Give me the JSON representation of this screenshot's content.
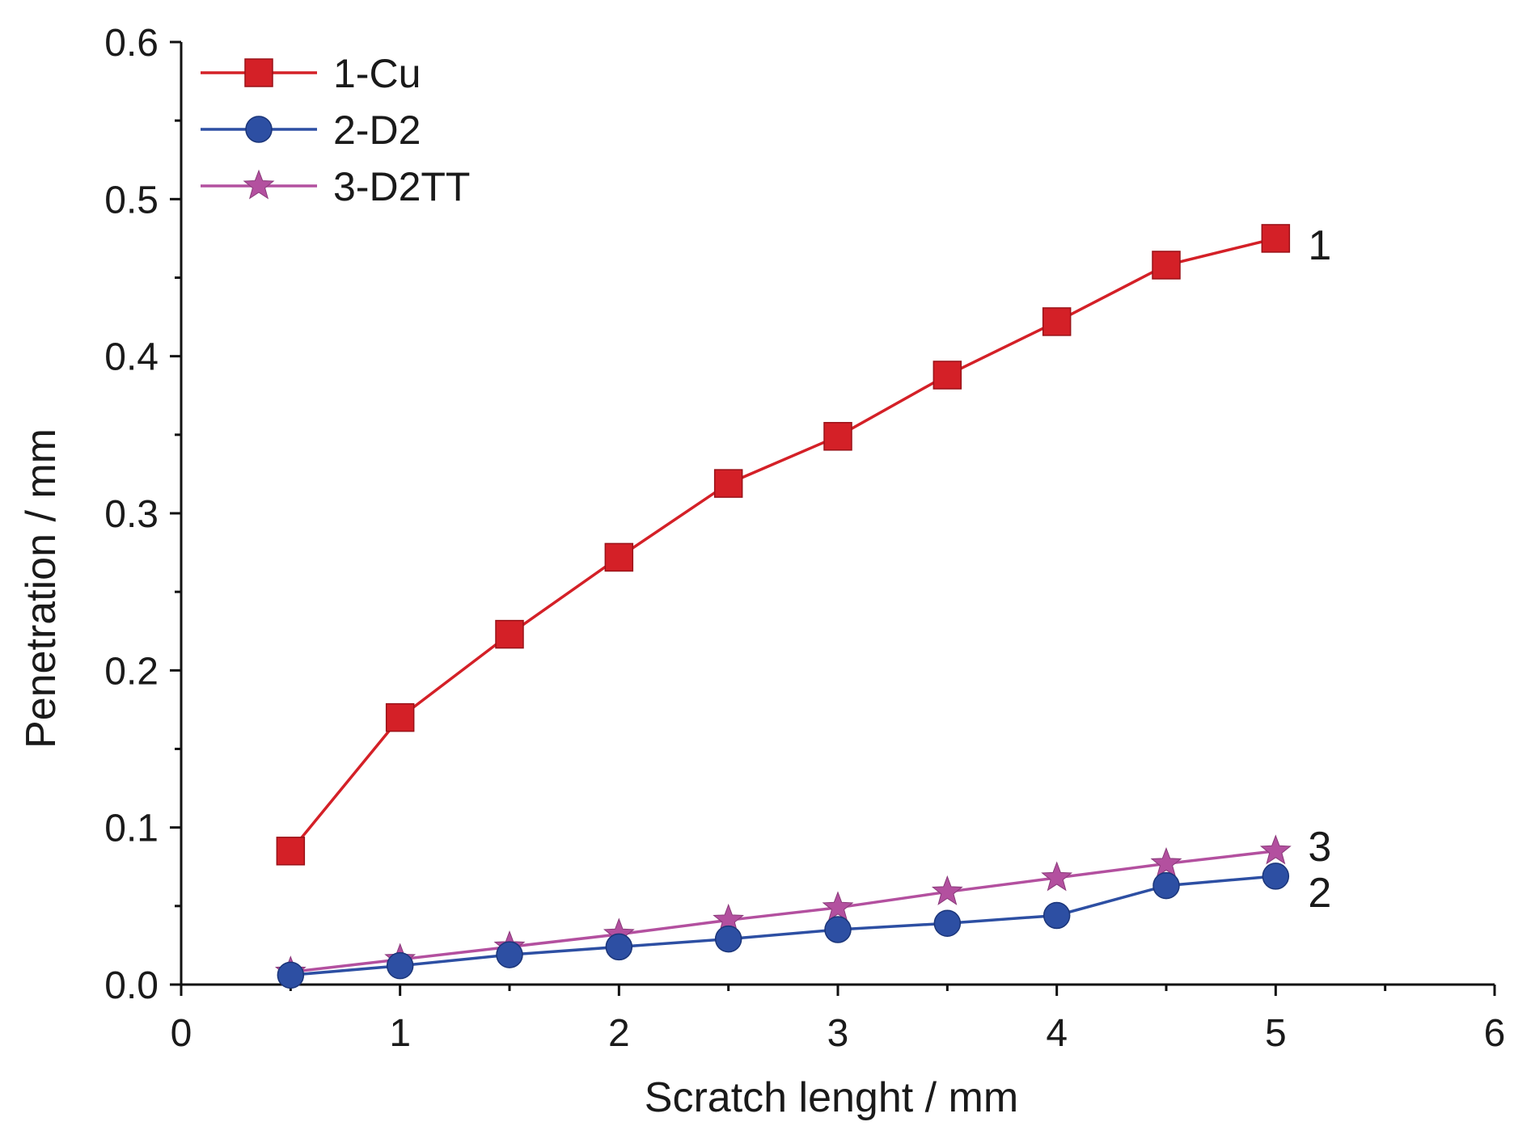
{
  "chart_data": {
    "type": "line",
    "title": "",
    "xlabel": "Scratch lenght / mm",
    "ylabel": "Penetration / mm",
    "xlim": [
      0,
      6
    ],
    "ylim": [
      0,
      0.6
    ],
    "x_ticks": [
      0,
      1,
      2,
      3,
      4,
      5,
      6
    ],
    "x_tick_labels": [
      "0",
      "1",
      "2",
      "3",
      "4",
      "5",
      "6"
    ],
    "y_ticks": [
      0,
      0.1,
      0.2,
      0.3,
      0.4,
      0.5,
      0.6
    ],
    "y_tick_labels": [
      "0.0",
      "0.1",
      "0.2",
      "0.3",
      "0.4",
      "0.5",
      "0.6"
    ],
    "grid": false,
    "legend_position": "top-left",
    "x": [
      0.5,
      1.0,
      1.5,
      2.0,
      2.5,
      3.0,
      3.5,
      4.0,
      4.5,
      5.0
    ],
    "series": [
      {
        "name": "1-Cu",
        "end_label": "1",
        "marker": "square",
        "color": "#d42027",
        "values": [
          0.085,
          0.17,
          0.223,
          0.272,
          0.319,
          0.349,
          0.388,
          0.422,
          0.458,
          0.475
        ]
      },
      {
        "name": "2-D2",
        "end_label": "2",
        "marker": "circle",
        "color": "#2d4fa3",
        "values": [
          0.006,
          0.012,
          0.019,
          0.024,
          0.029,
          0.035,
          0.039,
          0.044,
          0.063,
          0.069
        ]
      },
      {
        "name": "3-D2TT",
        "end_label": "3",
        "marker": "star",
        "color": "#b3509f",
        "values": [
          0.008,
          0.016,
          0.024,
          0.032,
          0.041,
          0.049,
          0.059,
          0.068,
          0.077,
          0.085
        ]
      }
    ]
  }
}
